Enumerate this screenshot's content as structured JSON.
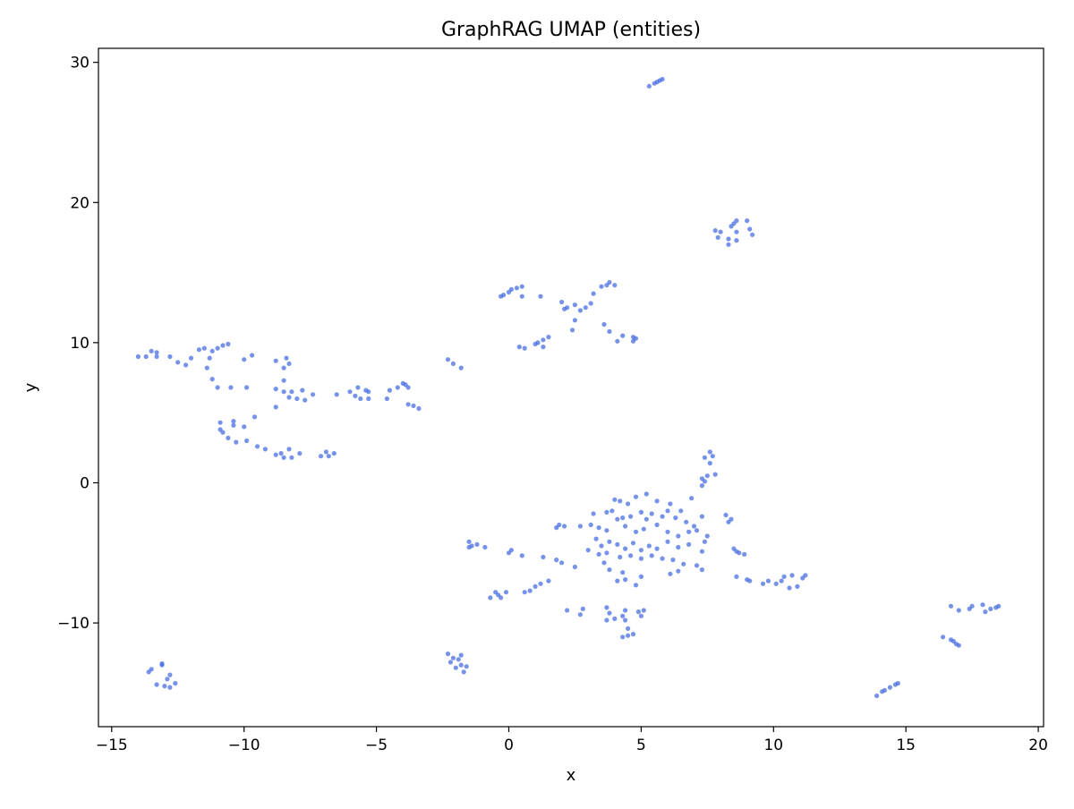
{
  "chart_data": {
    "type": "scatter",
    "title": "GraphRAG UMAP (entities)",
    "xlabel": "x",
    "ylabel": "y",
    "xlim": [
      -15.5,
      20.2
    ],
    "ylim": [
      -17.4,
      31.0
    ],
    "xticks": [
      -15,
      -10,
      -5,
      0,
      5,
      10,
      15,
      20
    ],
    "yticks": [
      -10,
      0,
      10,
      20,
      30
    ],
    "xtick_labels": [
      "−15",
      "−10",
      "−5",
      "0",
      "5",
      "10",
      "15",
      "20"
    ],
    "ytick_labels": [
      "−10",
      "0",
      "10",
      "20",
      "30"
    ],
    "grid": false,
    "legend": "none",
    "marker_color": "#4169e1",
    "series": [
      {
        "points": [
          [
            5.3,
            28.3
          ],
          [
            5.5,
            28.5
          ],
          [
            5.6,
            28.6
          ],
          [
            5.7,
            28.7
          ],
          [
            5.8,
            28.8
          ],
          [
            7.8,
            18.0
          ],
          [
            8.0,
            17.9
          ],
          [
            7.9,
            17.5
          ],
          [
            8.3,
            17.4
          ],
          [
            8.4,
            18.3
          ],
          [
            8.5,
            18.5
          ],
          [
            8.6,
            18.7
          ],
          [
            8.6,
            17.9
          ],
          [
            8.6,
            17.3
          ],
          [
            8.3,
            17.0
          ],
          [
            9.0,
            18.7
          ],
          [
            9.1,
            18.1
          ],
          [
            9.2,
            17.7
          ],
          [
            -0.3,
            13.3
          ],
          [
            -0.2,
            13.4
          ],
          [
            0.0,
            13.6
          ],
          [
            0.1,
            13.8
          ],
          [
            0.3,
            13.9
          ],
          [
            0.5,
            14.0
          ],
          [
            0.5,
            13.3
          ],
          [
            1.2,
            13.3
          ],
          [
            2.0,
            12.9
          ],
          [
            2.1,
            12.4
          ],
          [
            2.2,
            12.5
          ],
          [
            2.5,
            12.7
          ],
          [
            2.7,
            12.3
          ],
          [
            2.9,
            12.5
          ],
          [
            3.1,
            12.8
          ],
          [
            3.2,
            13.5
          ],
          [
            3.5,
            14.0
          ],
          [
            3.7,
            14.1
          ],
          [
            3.8,
            14.3
          ],
          [
            4.0,
            14.1
          ],
          [
            2.5,
            11.6
          ],
          [
            2.4,
            10.9
          ],
          [
            3.6,
            11.3
          ],
          [
            3.8,
            10.8
          ],
          [
            0.4,
            9.7
          ],
          [
            0.6,
            9.6
          ],
          [
            1.0,
            9.9
          ],
          [
            1.1,
            10.0
          ],
          [
            1.3,
            10.2
          ],
          [
            1.3,
            9.7
          ],
          [
            1.5,
            10.4
          ],
          [
            4.1,
            10.1
          ],
          [
            4.3,
            10.5
          ],
          [
            4.7,
            10.4
          ],
          [
            4.8,
            10.3
          ],
          [
            4.7,
            10.1
          ],
          [
            -14.0,
            9.0
          ],
          [
            -13.7,
            9.0
          ],
          [
            -13.5,
            9.4
          ],
          [
            -13.3,
            9.3
          ],
          [
            -13.3,
            9.0
          ],
          [
            -12.8,
            9.0
          ],
          [
            -12.5,
            8.6
          ],
          [
            -12.2,
            8.4
          ],
          [
            -12.0,
            8.9
          ],
          [
            -11.7,
            9.5
          ],
          [
            -11.5,
            9.6
          ],
          [
            -11.3,
            8.9
          ],
          [
            -11.2,
            9.4
          ],
          [
            -11.0,
            9.6
          ],
          [
            -10.8,
            9.8
          ],
          [
            -10.6,
            9.9
          ],
          [
            -10.0,
            8.8
          ],
          [
            -9.7,
            9.1
          ],
          [
            -11.4,
            8.2
          ],
          [
            -11.2,
            7.4
          ],
          [
            -11.0,
            6.8
          ],
          [
            -10.5,
            6.8
          ],
          [
            -9.9,
            6.8
          ],
          [
            -8.8,
            8.7
          ],
          [
            -8.5,
            8.2
          ],
          [
            -8.4,
            8.9
          ],
          [
            -8.3,
            8.5
          ],
          [
            -8.5,
            7.3
          ],
          [
            -8.8,
            6.7
          ],
          [
            -8.5,
            6.5
          ],
          [
            -8.3,
            6.1
          ],
          [
            -8.2,
            6.5
          ],
          [
            -8.0,
            6.0
          ],
          [
            -7.8,
            6.6
          ],
          [
            -7.7,
            5.9
          ],
          [
            -7.4,
            6.3
          ],
          [
            -8.8,
            5.4
          ],
          [
            -9.6,
            4.7
          ],
          [
            -10.9,
            4.3
          ],
          [
            -10.4,
            4.4
          ],
          [
            -10.4,
            4.1
          ],
          [
            -10.0,
            4.0
          ],
          [
            -10.9,
            3.8
          ],
          [
            -10.8,
            3.6
          ],
          [
            -10.6,
            3.2
          ],
          [
            -10.3,
            2.9
          ],
          [
            -9.9,
            3.0
          ],
          [
            -9.5,
            2.6
          ],
          [
            -9.2,
            2.4
          ],
          [
            -8.8,
            2.0
          ],
          [
            -8.6,
            2.1
          ],
          [
            -8.5,
            1.8
          ],
          [
            -8.3,
            2.4
          ],
          [
            -8.2,
            1.8
          ],
          [
            -7.9,
            2.1
          ],
          [
            -7.1,
            1.9
          ],
          [
            -6.9,
            2.2
          ],
          [
            -6.8,
            1.9
          ],
          [
            -6.6,
            2.1
          ],
          [
            -6.5,
            6.3
          ],
          [
            -6.0,
            6.5
          ],
          [
            -5.8,
            6.2
          ],
          [
            -5.6,
            6.0
          ],
          [
            -5.7,
            6.8
          ],
          [
            -5.4,
            6.6
          ],
          [
            -5.3,
            6.0
          ],
          [
            -5.3,
            6.5
          ],
          [
            -4.6,
            6.0
          ],
          [
            -4.5,
            6.6
          ],
          [
            -4.2,
            6.8
          ],
          [
            -4.0,
            7.1
          ],
          [
            -3.9,
            7.0
          ],
          [
            -3.8,
            6.8
          ],
          [
            -3.8,
            5.6
          ],
          [
            -3.6,
            5.5
          ],
          [
            -3.4,
            5.3
          ],
          [
            -2.3,
            8.8
          ],
          [
            -2.1,
            8.5
          ],
          [
            -1.8,
            8.2
          ],
          [
            7.6,
            2.2
          ],
          [
            7.7,
            1.9
          ],
          [
            7.6,
            1.4
          ],
          [
            7.4,
            1.8
          ],
          [
            7.3,
            0.3
          ],
          [
            7.4,
            0.1
          ],
          [
            7.5,
            0.5
          ],
          [
            7.8,
            0.6
          ],
          [
            7.3,
            -0.2
          ],
          [
            4.0,
            -1.2
          ],
          [
            4.2,
            -1.3
          ],
          [
            4.3,
            -2.5
          ],
          [
            4.5,
            -1.5
          ],
          [
            4.8,
            -1.0
          ],
          [
            5.2,
            -0.8
          ],
          [
            5.6,
            -1.3
          ],
          [
            6.1,
            -1.5
          ],
          [
            6.5,
            -2.0
          ],
          [
            6.9,
            -1.1
          ],
          [
            7.3,
            -2.4
          ],
          [
            3.7,
            -2.1
          ],
          [
            3.9,
            -2.0
          ],
          [
            4.1,
            -2.6
          ],
          [
            4.6,
            -2.4
          ],
          [
            5.0,
            -2.1
          ],
          [
            5.2,
            -2.6
          ],
          [
            5.4,
            -2.2
          ],
          [
            5.8,
            -2.4
          ],
          [
            6.0,
            -2.0
          ],
          [
            6.3,
            -2.5
          ],
          [
            6.7,
            -2.8
          ],
          [
            7.0,
            -3.1
          ],
          [
            3.2,
            -2.2
          ],
          [
            3.1,
            -3.0
          ],
          [
            3.4,
            -3.2
          ],
          [
            3.7,
            -3.4
          ],
          [
            4.4,
            -3.1
          ],
          [
            4.8,
            -3.5
          ],
          [
            5.1,
            -3.3
          ],
          [
            5.6,
            -3.0
          ],
          [
            6.0,
            -3.5
          ],
          [
            6.4,
            -3.8
          ],
          [
            6.8,
            -3.5
          ],
          [
            7.1,
            -3.4
          ],
          [
            7.5,
            -3.8
          ],
          [
            7.4,
            -4.2
          ],
          [
            2.7,
            -3.1
          ],
          [
            2.1,
            -3.1
          ],
          [
            1.9,
            -3.0
          ],
          [
            1.8,
            -3.2
          ],
          [
            3.3,
            -4.0
          ],
          [
            3.5,
            -4.5
          ],
          [
            3.8,
            -4.2
          ],
          [
            4.1,
            -4.4
          ],
          [
            4.4,
            -4.7
          ],
          [
            4.7,
            -4.3
          ],
          [
            5.0,
            -4.8
          ],
          [
            5.3,
            -4.5
          ],
          [
            5.6,
            -4.7
          ],
          [
            6.0,
            -4.2
          ],
          [
            6.4,
            -4.6
          ],
          [
            6.8,
            -4.4
          ],
          [
            7.3,
            -4.9
          ],
          [
            3.0,
            -4.8
          ],
          [
            3.4,
            -5.1
          ],
          [
            3.7,
            -5.0
          ],
          [
            4.2,
            -5.3
          ],
          [
            4.6,
            -5.2
          ],
          [
            5.0,
            -5.4
          ],
          [
            5.4,
            -5.2
          ],
          [
            5.8,
            -5.4
          ],
          [
            6.2,
            -5.5
          ],
          [
            6.6,
            -5.8
          ],
          [
            7.1,
            -5.9
          ],
          [
            3.6,
            -5.7
          ],
          [
            3.8,
            -6.2
          ],
          [
            4.3,
            -6.4
          ],
          [
            5.0,
            -6.7
          ],
          [
            6.1,
            -6.5
          ],
          [
            6.4,
            -6.3
          ],
          [
            7.3,
            -6.2
          ],
          [
            4.1,
            -7.0
          ],
          [
            4.4,
            -6.9
          ],
          [
            4.8,
            -7.3
          ],
          [
            1.8,
            -5.5
          ],
          [
            2.0,
            -5.7
          ],
          [
            1.3,
            -5.3
          ],
          [
            0.0,
            -5.0
          ],
          [
            0.1,
            -4.8
          ],
          [
            0.5,
            -5.2
          ],
          [
            2.5,
            -6.0
          ],
          [
            -1.5,
            -4.2
          ],
          [
            -1.4,
            -4.5
          ],
          [
            -1.2,
            -4.4
          ],
          [
            -1.5,
            -4.6
          ],
          [
            -0.9,
            -4.6
          ],
          [
            1.5,
            -7.0
          ],
          [
            1.2,
            -7.2
          ],
          [
            1.0,
            -7.4
          ],
          [
            0.8,
            -7.7
          ],
          [
            0.6,
            -7.8
          ],
          [
            -0.1,
            -7.8
          ],
          [
            -0.5,
            -7.8
          ],
          [
            -0.4,
            -8.0
          ],
          [
            -0.7,
            -8.2
          ],
          [
            -0.3,
            -8.2
          ],
          [
            2.2,
            -9.1
          ],
          [
            2.7,
            -9.4
          ],
          [
            2.8,
            -9.0
          ],
          [
            3.7,
            -8.9
          ],
          [
            3.8,
            -9.3
          ],
          [
            3.7,
            -9.8
          ],
          [
            4.0,
            -9.7
          ],
          [
            4.3,
            -9.5
          ],
          [
            4.4,
            -9.1
          ],
          [
            4.4,
            -9.8
          ],
          [
            4.5,
            -10.4
          ],
          [
            4.9,
            -9.2
          ],
          [
            5.0,
            -9.5
          ],
          [
            5.1,
            -9.1
          ],
          [
            4.3,
            -11.0
          ],
          [
            4.5,
            -10.9
          ],
          [
            4.7,
            -10.8
          ],
          [
            8.2,
            -2.3
          ],
          [
            8.3,
            -2.8
          ],
          [
            8.4,
            -2.6
          ],
          [
            8.5,
            -4.7
          ],
          [
            8.6,
            -4.9
          ],
          [
            8.7,
            -5.0
          ],
          [
            8.9,
            -5.1
          ],
          [
            8.6,
            -6.7
          ],
          [
            9.0,
            -6.9
          ],
          [
            9.1,
            -7.0
          ],
          [
            9.6,
            -7.2
          ],
          [
            9.8,
            -7.0
          ],
          [
            10.1,
            -7.2
          ],
          [
            10.3,
            -7.0
          ],
          [
            10.4,
            -6.7
          ],
          [
            10.7,
            -6.6
          ],
          [
            10.6,
            -7.5
          ],
          [
            10.9,
            -7.4
          ],
          [
            11.1,
            -6.8
          ],
          [
            11.2,
            -6.6
          ],
          [
            16.4,
            -11.0
          ],
          [
            16.7,
            -11.2
          ],
          [
            16.8,
            -11.3
          ],
          [
            16.9,
            -11.5
          ],
          [
            17.0,
            -11.6
          ],
          [
            16.7,
            -8.8
          ],
          [
            17.0,
            -9.1
          ],
          [
            17.4,
            -9.0
          ],
          [
            17.5,
            -8.8
          ],
          [
            17.9,
            -8.7
          ],
          [
            18.0,
            -9.2
          ],
          [
            18.2,
            -9.0
          ],
          [
            18.4,
            -8.9
          ],
          [
            18.5,
            -8.8
          ],
          [
            13.9,
            -15.2
          ],
          [
            14.1,
            -14.9
          ],
          [
            14.2,
            -14.8
          ],
          [
            14.4,
            -14.6
          ],
          [
            14.6,
            -14.4
          ],
          [
            14.7,
            -14.3
          ],
          [
            -13.6,
            -13.5
          ],
          [
            -13.5,
            -13.3
          ],
          [
            -13.3,
            -14.4
          ],
          [
            -13.1,
            -12.9
          ],
          [
            -13.1,
            -13.0
          ],
          [
            -13.0,
            -14.5
          ],
          [
            -12.9,
            -14.0
          ],
          [
            -12.8,
            -13.7
          ],
          [
            -12.8,
            -14.6
          ],
          [
            -12.6,
            -14.3
          ],
          [
            -2.3,
            -12.2
          ],
          [
            -2.2,
            -12.8
          ],
          [
            -2.1,
            -12.5
          ],
          [
            -2.0,
            -13.2
          ],
          [
            -1.9,
            -12.6
          ],
          [
            -1.8,
            -12.3
          ],
          [
            -1.8,
            -13.0
          ],
          [
            -1.6,
            -13.1
          ],
          [
            -1.7,
            -13.5
          ]
        ]
      }
    ]
  }
}
